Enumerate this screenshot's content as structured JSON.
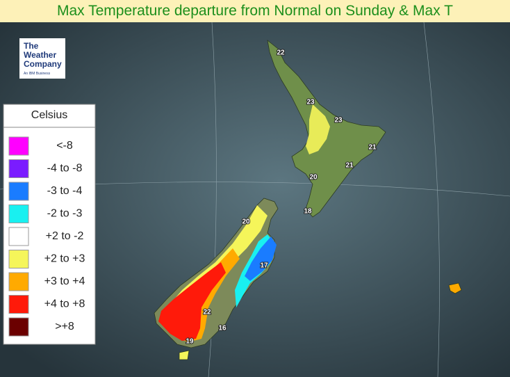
{
  "header": {
    "title": "Max Temperature departure from Normal on Sunday & Max T"
  },
  "logo": {
    "lines": [
      "The",
      "Weather",
      "Company",
      "An IBM Business"
    ]
  },
  "legend": {
    "title": "Celsius",
    "items": [
      {
        "label": "<-8",
        "color": "#ff00ff"
      },
      {
        "label": "-4 to -8",
        "color": "#7a1cff"
      },
      {
        "label": "-3 to -4",
        "color": "#1a7cff"
      },
      {
        "label": "-2 to -3",
        "color": "#19f0f0"
      },
      {
        "label": "+2 to -2",
        "color": "#ffffff"
      },
      {
        "label": "+2 to +3",
        "color": "#f5f55a"
      },
      {
        "label": "+3 to +4",
        "color": "#ffaa00"
      },
      {
        "label": "+4 to +8",
        "color": "#ff1a0a"
      },
      {
        "label": ">+8",
        "color": "#6b0000"
      }
    ]
  },
  "map": {
    "temperatures": [
      22,
      23,
      23,
      21,
      21,
      20,
      18,
      20,
      17,
      22,
      16,
      19
    ]
  }
}
